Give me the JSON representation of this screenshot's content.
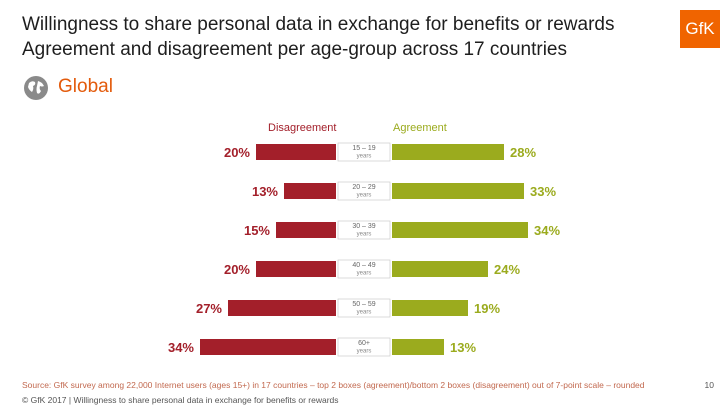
{
  "title": {
    "line1": "Willingness to share personal data in exchange for benefits or rewards",
    "line2": "Agreement and disagreement per age-group across 17 countries"
  },
  "logo_text": "GfK",
  "region": "Global",
  "icons": {
    "region": "globe-icon"
  },
  "colors": {
    "disagreement": "#a31f2a",
    "agreement": "#9bab1e",
    "accent": "#f06400"
  },
  "chart_data": {
    "type": "bar",
    "orientation": "diverging-horizontal",
    "categories": [
      {
        "label": "15 – 19",
        "sub": "years"
      },
      {
        "label": "20 – 29",
        "sub": "years"
      },
      {
        "label": "30 – 39",
        "sub": "years"
      },
      {
        "label": "40 – 49",
        "sub": "years"
      },
      {
        "label": "50 – 59",
        "sub": "years"
      },
      {
        "label": "60+",
        "sub": "years"
      }
    ],
    "series": [
      {
        "name": "Disagreement",
        "values": [
          20,
          13,
          15,
          20,
          27,
          34
        ]
      },
      {
        "name": "Agreement",
        "values": [
          28,
          33,
          34,
          24,
          19,
          13
        ]
      }
    ],
    "unit": "%"
  },
  "source": "Source: GfK survey among 22,000 Internet users (ages 15+) in 17 countries – top 2 boxes (agreement)/bottom 2 boxes (disagreement) out of 7-point scale – rounded",
  "footer": "© GfK 2017 | Willingness to share personal data in exchange for benefits or rewards",
  "page_number": "10"
}
